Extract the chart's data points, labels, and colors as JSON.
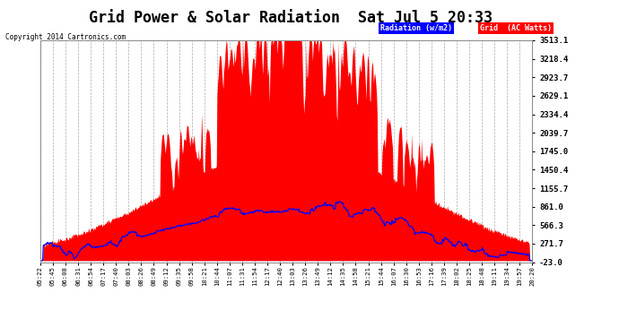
{
  "title": "Grid Power & Solar Radiation  Sat Jul 5 20:33",
  "copyright": "Copyright 2014 Cartronics.com",
  "plot_bg_color": "#ffffff",
  "fig_bg_color": "#ffffff",
  "grid_color": "#aaaaaa",
  "yticks": [
    3513.1,
    3218.4,
    2923.7,
    2629.1,
    2334.4,
    2039.7,
    1745.0,
    1450.4,
    1155.7,
    861.0,
    566.3,
    271.7,
    -23.0
  ],
  "ymin": -23.0,
  "ymax": 3513.1,
  "xtick_labels": [
    "05:22",
    "05:45",
    "06:08",
    "06:31",
    "06:54",
    "07:17",
    "07:40",
    "08:03",
    "08:26",
    "08:49",
    "09:12",
    "09:35",
    "09:58",
    "10:21",
    "10:44",
    "11:07",
    "11:31",
    "11:54",
    "12:17",
    "12:40",
    "13:03",
    "13:26",
    "13:49",
    "14:12",
    "14:35",
    "14:58",
    "15:21",
    "15:44",
    "16:07",
    "16:30",
    "16:53",
    "17:16",
    "17:39",
    "18:02",
    "18:25",
    "18:48",
    "19:11",
    "19:34",
    "19:57",
    "20:20"
  ],
  "radiation_color": "#0000ff",
  "grid_fill_color": "#ff0000",
  "title_fontsize": 12
}
